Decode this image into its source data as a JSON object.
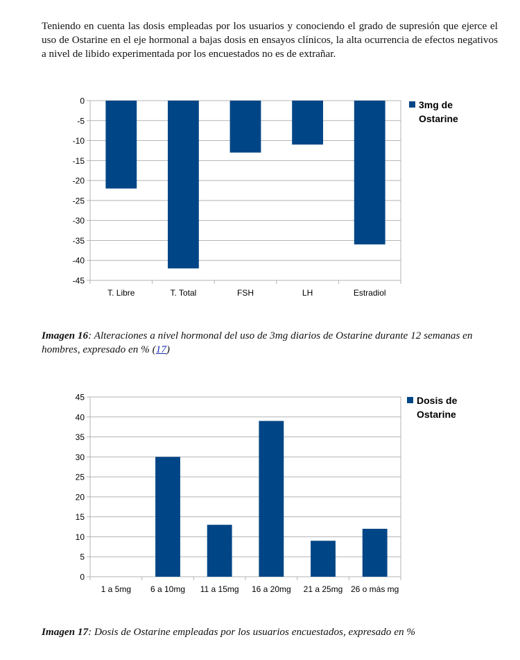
{
  "paragraph": "Teniendo en cuenta las dosis empleadas por los usuarios y conociendo el grado de supresión que ejerce el uso de Ostarine en el eje hormonal a bajas dosis en ensayos clínicos, la alta ocurrencia de efectos negativos a nivel de libido experimentada por los encuestados no es de extrañar.",
  "captions": [
    {
      "label": "Imagen 16",
      "text": ": Alteraciones a nivel hormonal del uso de 3mg diarios de Ostarine durante 12 semanas en hombres, expresado en % (",
      "ref": "17",
      "tail": ")"
    },
    {
      "label": "Imagen 17",
      "text": ": Dosis de Ostarine empleadas por los usuarios encuestados, expresado en %",
      "ref": "",
      "tail": ""
    }
  ],
  "chart_data": [
    {
      "type": "bar",
      "categories": [
        "T. Libre",
        "T. Total",
        "FSH",
        "LH",
        "Estradiol"
      ],
      "series": [
        {
          "name": "3mg de Ostarine",
          "values": [
            -22,
            -42,
            -13,
            -11,
            -36
          ]
        }
      ],
      "legend_lines": [
        "3mg de",
        "Ostarine"
      ],
      "ylim": [
        -45,
        0
      ],
      "yticks": [
        0,
        -5,
        -10,
        -15,
        -20,
        -25,
        -30,
        -35,
        -40,
        -45
      ],
      "legend": "right",
      "grid": true,
      "bar_color": "#004586"
    },
    {
      "type": "bar",
      "categories": [
        "1 a 5mg",
        "6 a 10mg",
        "11 a 15mg",
        "16 a 20mg",
        "21 a 25mg",
        "26 o más mg"
      ],
      "series": [
        {
          "name": "Dosis de Ostarine",
          "values": [
            0,
            30,
            13,
            39,
            9,
            12
          ]
        }
      ],
      "legend_lines": [
        "Dosis de",
        "Ostarine"
      ],
      "ylim": [
        0,
        45
      ],
      "yticks": [
        45,
        40,
        35,
        30,
        25,
        20,
        15,
        10,
        5,
        0
      ],
      "legend": "right",
      "grid": true,
      "bar_color": "#004586"
    }
  ]
}
